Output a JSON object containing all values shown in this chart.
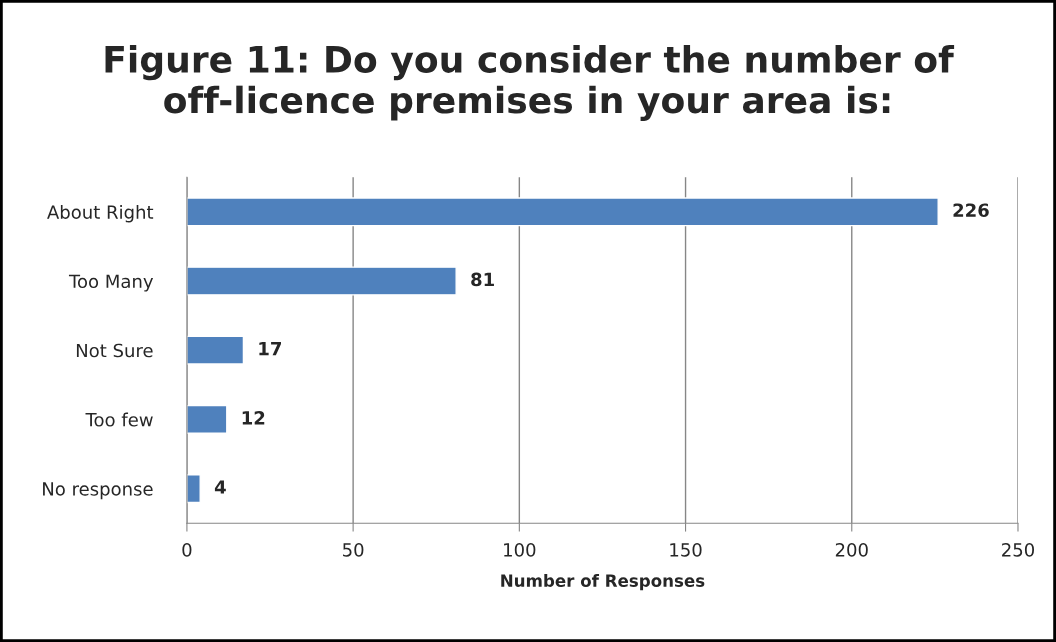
{
  "chart_data": {
    "type": "bar",
    "orientation": "horizontal",
    "title": "Figure 11: Do you consider the number of off-licence premises in your area is:",
    "xlabel": "Number of Responses",
    "categories": [
      "About Right",
      "Too Many",
      "Not Sure",
      "Too few",
      "No response"
    ],
    "values": [
      226,
      81,
      17,
      12,
      4
    ],
    "color": "#4f81bd",
    "xlim": [
      0,
      250
    ],
    "xticks": [
      0,
      50,
      100,
      150,
      200,
      250
    ],
    "grid": "x",
    "data_labels": true
  }
}
